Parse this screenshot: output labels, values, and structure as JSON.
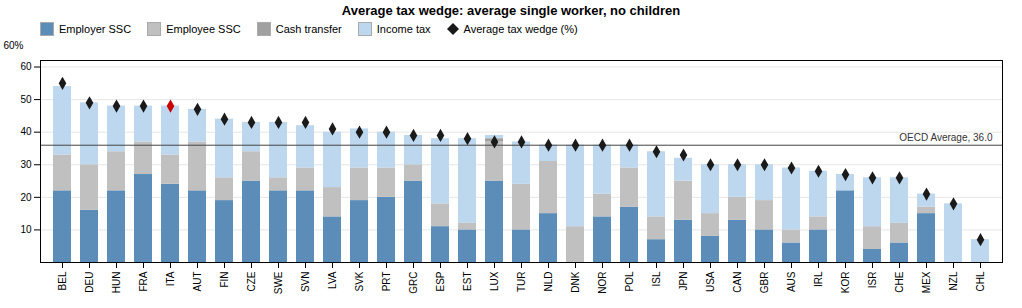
{
  "chart_data": {
    "type": "bar",
    "title": "Average tax wedge: average single worker, no children",
    "categories": [
      "BEL",
      "DEU",
      "HUN",
      "FRA",
      "ITA",
      "AUT",
      "FIN",
      "CZE",
      "SWE",
      "SVN",
      "LVA",
      "SVK",
      "PRT",
      "GRC",
      "ESP",
      "EST",
      "LUX",
      "TUR",
      "NLD",
      "DNK",
      "NOR",
      "POL",
      "ISL",
      "JPN",
      "USA",
      "CAN",
      "GBR",
      "AUS",
      "IRL",
      "KOR",
      "ISR",
      "CHE",
      "MEX",
      "NZL",
      "CHL"
    ],
    "series": [
      {
        "name": "Employer SSC",
        "type": "bar",
        "color": "#5B8DB8",
        "values": [
          22,
          16,
          22,
          27,
          24,
          22,
          19,
          25,
          22,
          22,
          14,
          19,
          20,
          25,
          11,
          10,
          25,
          10,
          15,
          0,
          14,
          17,
          7,
          13,
          8,
          13,
          10,
          6,
          10,
          22,
          4,
          6,
          15,
          0,
          0
        ]
      },
      {
        "name": "Employee SSC",
        "type": "bar",
        "color": "#C0C0C0",
        "values": [
          11,
          14,
          12,
          10,
          9,
          15,
          7,
          9,
          4,
          7,
          9,
          10,
          9,
          5,
          7,
          2,
          12,
          14,
          16,
          11,
          7,
          12,
          7,
          12,
          7,
          7,
          9,
          4,
          4,
          0,
          7,
          6,
          2,
          0,
          0
        ]
      },
      {
        "name": "Cash transfer",
        "type": "bar",
        "color": "#A0A0A0",
        "values": [
          0,
          0,
          0,
          0,
          0,
          0,
          0,
          0,
          0,
          0,
          0,
          0,
          0,
          0,
          0,
          0,
          1,
          0,
          0,
          0,
          0,
          0,
          0,
          0,
          0,
          0,
          0,
          0,
          0,
          0,
          0,
          0,
          0,
          0,
          0
        ]
      },
      {
        "name": "Income tax",
        "type": "bar",
        "color": "#BDD7EE",
        "values": [
          21,
          19,
          14,
          11,
          15,
          10,
          18,
          9,
          17,
          13,
          17,
          12,
          11,
          9,
          20,
          26,
          1,
          13,
          5,
          25,
          15,
          7,
          20,
          7,
          15,
          10,
          11,
          19,
          14,
          5,
          15,
          14,
          4,
          18,
          7
        ]
      },
      {
        "name": "Average tax wedge (%)",
        "type": "scatter",
        "marker": "diamond",
        "colors": [
          "#1a1a1a",
          "#1a1a1a",
          "#1a1a1a",
          "#1a1a1a",
          "#CC0000",
          "#1a1a1a",
          "#1a1a1a",
          "#1a1a1a",
          "#1a1a1a",
          "#1a1a1a",
          "#1a1a1a",
          "#1a1a1a",
          "#1a1a1a",
          "#1a1a1a",
          "#1a1a1a",
          "#1a1a1a",
          "#1a1a1a",
          "#1a1a1a",
          "#1a1a1a",
          "#1a1a1a",
          "#1a1a1a",
          "#1a1a1a",
          "#1a1a1a",
          "#1a1a1a",
          "#1a1a1a",
          "#1a1a1a",
          "#1a1a1a",
          "#1a1a1a",
          "#1a1a1a",
          "#1a1a1a",
          "#1a1a1a",
          "#1a1a1a",
          "#1a1a1a",
          "#1a1a1a",
          "#1a1a1a"
        ],
        "values": [
          55,
          49,
          48,
          48,
          48,
          47,
          44,
          43,
          43,
          43,
          41,
          40,
          40,
          39,
          39,
          38,
          37,
          37,
          36,
          36,
          36,
          36,
          34,
          33,
          30,
          30,
          30,
          29,
          28,
          27,
          26,
          26,
          21,
          18,
          7
        ]
      }
    ],
    "annotations": [
      {
        "text": "OECD Average, 36.0",
        "y": 36.0,
        "color": "#444444"
      }
    ],
    "ylabel": "60%",
    "ylim": [
      0,
      62
    ],
    "yticks": [
      10,
      20,
      30,
      40,
      50,
      60
    ],
    "stacked": true,
    "grid": true,
    "legend": "top"
  }
}
